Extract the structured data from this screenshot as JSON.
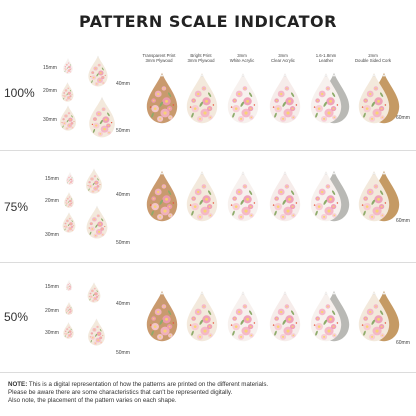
{
  "title": "PATTERN SCALE INDICATOR",
  "columns": [
    {
      "line1": "Transparent Print",
      "line2": "3mm Plywood"
    },
    {
      "line1": "Bright Print",
      "line2": "3mm Plywood"
    },
    {
      "line1": "3mm",
      "line2": "White Acrylic"
    },
    {
      "line1": "3mm",
      "line2": "Clear Acrylic"
    },
    {
      "line1": "1.6-1.8mm",
      "line2": "Leather"
    },
    {
      "line1": "2mm",
      "line2": "Double Sided Cork"
    }
  ],
  "sections": [
    {
      "scale": "100%"
    },
    {
      "scale": "75%"
    },
    {
      "scale": "50%"
    }
  ],
  "sizes": {
    "s15": "15mm",
    "s20": "20mm",
    "s30": "30mm",
    "s40": "40mm",
    "s50": "50mm",
    "s60": "60mm"
  },
  "note": {
    "label": "NOTE:",
    "line1": "This is a digital representation of how the patterns are printed on the different materials.",
    "line2": "Please be aware there are some characteristics that can't be represented digitally.",
    "line3": "Also note, the placement of the pattern varies on each shape."
  },
  "colors": {
    "wood": "#c99a6e",
    "cream": "#f3e9dc",
    "white": "#f7f1ee",
    "leather": "#b9b9b5",
    "cork": "#c59a64",
    "flower_pink": "#ee9ab2",
    "leaf": "#8dab6a"
  }
}
